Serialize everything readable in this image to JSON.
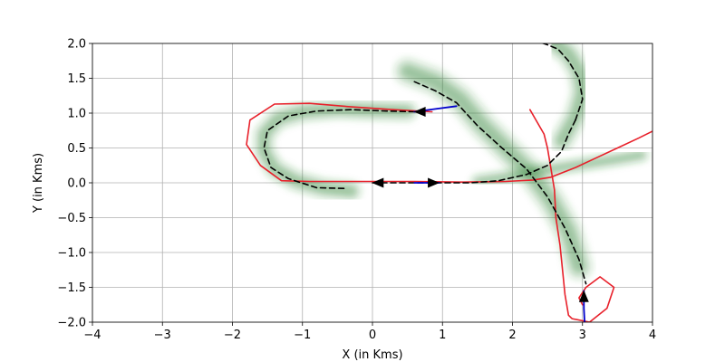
{
  "chart_data": {
    "type": "line",
    "xlabel": "X (in Kms)",
    "ylabel": "Y (in Kms)",
    "xlim": [
      -4,
      4
    ],
    "ylim": [
      -2,
      2
    ],
    "xticks": [
      -4,
      -3,
      -2,
      -1,
      0,
      1,
      2,
      3,
      4
    ],
    "yticks": [
      -2.0,
      -1.5,
      -1.0,
      -0.5,
      0.0,
      0.5,
      1.0,
      1.5,
      2.0
    ],
    "xtick_labels": [
      "−4",
      "−3",
      "−2",
      "−1",
      "0",
      "1",
      "2",
      "3",
      "4"
    ],
    "ytick_labels": [
      "−2.0",
      "−1.5",
      "−1.0",
      "−0.5",
      "0.0",
      "0.5",
      "1.0",
      "1.5",
      "2.0"
    ],
    "grid": true,
    "colors": {
      "predicted": "#2e7d32",
      "ground_truth": "#000000",
      "history": "#0000cc",
      "other": "#e8202a"
    },
    "series": [
      {
        "style": "red-solid",
        "color": "#e8202a",
        "x": [
          0.85,
          0.3,
          -0.3,
          -0.9,
          -1.4,
          -1.75,
          -1.8,
          -1.6,
          -1.3,
          -0.9,
          -0.4,
          0.0
        ],
        "y": [
          1.02,
          1.05,
          1.09,
          1.14,
          1.13,
          0.9,
          0.55,
          0.25,
          0.03,
          0.02,
          0.02,
          0.02
        ]
      },
      {
        "style": "red-solid",
        "color": "#e8202a",
        "x": [
          0.0,
          0.6,
          1.3,
          1.9,
          2.3,
          2.55,
          2.9,
          3.2,
          3.5,
          3.8,
          4.1
        ],
        "y": [
          0.02,
          0.02,
          0.01,
          0.02,
          0.04,
          0.08,
          0.22,
          0.36,
          0.5,
          0.64,
          0.79
        ]
      },
      {
        "style": "red-solid",
        "color": "#e8202a",
        "x": [
          2.25,
          2.45,
          2.5,
          2.55,
          2.6,
          2.62,
          2.68,
          2.72,
          2.75,
          2.8,
          2.85,
          3.1,
          3.35,
          3.45,
          3.25,
          3.05,
          2.95,
          3.0
        ],
        "y": [
          1.05,
          0.7,
          0.5,
          0.2,
          -0.1,
          -0.5,
          -0.9,
          -1.3,
          -1.6,
          -1.9,
          -1.95,
          -2.0,
          -1.8,
          -1.5,
          -1.35,
          -1.5,
          -1.65,
          -1.75
        ]
      },
      {
        "style": "black-dashed",
        "color": "#000000",
        "x": [
          0.6,
          0.2,
          -0.3,
          -0.8,
          -1.2,
          -1.5,
          -1.55,
          -1.45,
          -1.2,
          -0.8,
          -0.4
        ],
        "y": [
          1.02,
          1.03,
          1.05,
          1.03,
          0.96,
          0.75,
          0.5,
          0.22,
          0.06,
          -0.07,
          -0.08
        ]
      },
      {
        "style": "black-dashed",
        "color": "#000000",
        "x": [
          0.0,
          0.5,
          1.0,
          1.4,
          1.8,
          2.2,
          2.5,
          2.7,
          2.8,
          2.9
        ],
        "y": [
          0.0,
          0.0,
          0.0,
          0.0,
          0.03,
          0.12,
          0.25,
          0.45,
          0.7,
          0.9
        ]
      },
      {
        "style": "black-dashed",
        "color": "#000000",
        "x": [
          0.6,
          0.9,
          1.2,
          1.5,
          1.85,
          2.2,
          2.5,
          2.75,
          2.95,
          3.05
        ],
        "y": [
          1.45,
          1.32,
          1.15,
          0.82,
          0.5,
          0.2,
          -0.2,
          -0.65,
          -1.1,
          -1.45
        ]
      },
      {
        "style": "black-dashed",
        "color": "#000000",
        "x": [
          2.9,
          3.0,
          2.95,
          2.8,
          2.65,
          2.5,
          2.3
        ],
        "y": [
          0.9,
          1.2,
          1.5,
          1.75,
          1.92,
          1.98,
          2.05
        ]
      },
      {
        "style": "blue-solid",
        "color": "#0000cc",
        "x": [
          1.2,
          0.9,
          0.6
        ],
        "y": [
          1.1,
          1.06,
          1.02
        ]
      },
      {
        "style": "blue-solid",
        "color": "#0000cc",
        "x": [
          0.6,
          0.95
        ],
        "y": [
          0.0,
          0.0
        ]
      },
      {
        "style": "blue-solid",
        "color": "#0000cc",
        "x": [
          3.03,
          3.02,
          3.02
        ],
        "y": [
          -2.0,
          -1.8,
          -1.55
        ]
      }
    ],
    "arrows": [
      {
        "x": 0.6,
        "y": 1.02,
        "dir": "left"
      },
      {
        "x": 0.95,
        "y": 0.0,
        "dir": "right"
      },
      {
        "x": 3.02,
        "y": -1.55,
        "dir": "up"
      },
      {
        "x": 0.0,
        "y": 0.0,
        "dir": "left"
      }
    ],
    "predicted_bands": [
      {
        "x": [
          0.5,
          0.0,
          -0.5,
          -1.0,
          -1.35,
          -1.55,
          -1.55,
          -1.4,
          -1.1,
          -0.7,
          -0.3
        ],
        "y": [
          1.03,
          1.04,
          1.06,
          1.02,
          0.92,
          0.7,
          0.45,
          0.2,
          0.03,
          -0.08,
          -0.12
        ],
        "spread": 0.09
      },
      {
        "x": [
          1.5,
          1.9,
          2.3,
          2.7,
          3.1,
          3.5,
          3.85
        ],
        "y": [
          0.02,
          0.08,
          0.16,
          0.22,
          0.28,
          0.34,
          0.4
        ],
        "spread": 0.06
      },
      {
        "x": [
          0.5,
          0.9,
          1.25,
          1.55,
          1.9,
          2.25,
          2.55,
          2.8,
          2.95
        ],
        "y": [
          1.6,
          1.45,
          1.2,
          0.85,
          0.5,
          0.15,
          -0.25,
          -0.7,
          -1.2
        ],
        "spread": 0.12
      },
      {
        "x": [
          2.7,
          2.9,
          3.0,
          2.95,
          2.8,
          2.6
        ],
        "y": [
          0.6,
          0.95,
          1.3,
          1.6,
          1.85,
          2.0
        ],
        "spread": 0.1
      }
    ]
  }
}
